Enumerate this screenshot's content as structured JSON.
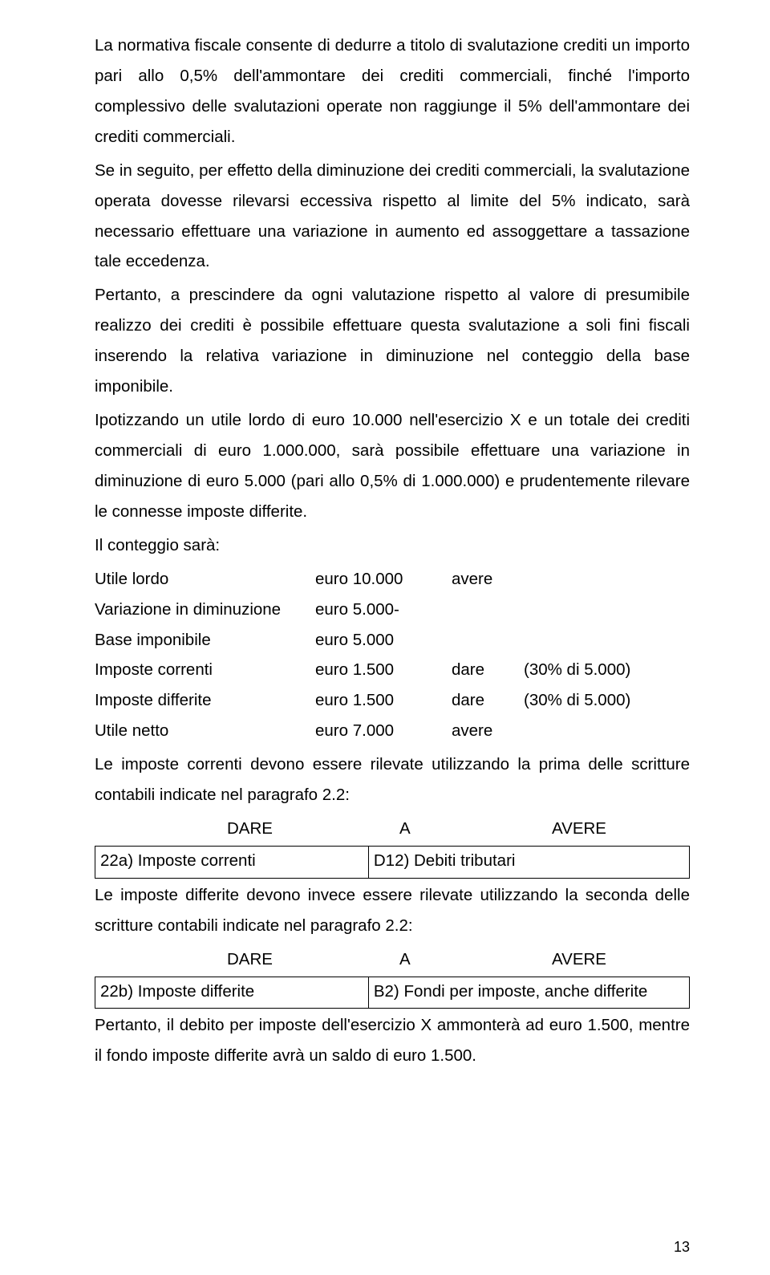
{
  "paragraphs": {
    "p1": "La normativa fiscale consente di dedurre a titolo di svalutazione crediti un importo pari allo 0,5% dell'ammontare dei crediti commerciali, finché l'importo complessivo delle svalutazioni operate non raggiunge il 5% dell'ammontare dei crediti commerciali.",
    "p2": "Se in seguito, per effetto della diminuzione dei crediti commerciali, la svalutazione operata dovesse rilevarsi eccessiva rispetto al limite del 5% indicato, sarà necessario effettuare una variazione in aumento ed assoggettare a tassazione tale eccedenza.",
    "p3": "Pertanto, a prescindere da ogni valutazione rispetto al valore di presumibile realizzo dei crediti è possibile effettuare questa svalutazione a soli fini fiscali inserendo la relativa variazione in diminuzione nel conteggio della base imponibile.",
    "p4": "Ipotizzando un utile lordo di euro 10.000 nell'esercizio X e un totale dei crediti commerciali di euro 1.000.000, sarà possibile effettuare una variazione in diminuzione di euro 5.000 (pari allo 0,5% di 1.000.000) e prudentemente rilevare le connesse imposte differite.",
    "p5": "Il conteggio sarà:",
    "p6": "Le imposte correnti devono essere rilevate utilizzando la prima delle scritture contabili indicate nel paragrafo 2.2:",
    "p7": "Le imposte differite devono invece essere rilevate utilizzando la seconda delle scritture contabili indicate nel paragrafo 2.2:",
    "p8": "Pertanto, il debito per imposte dell'esercizio X ammonterà ad euro 1.500, mentre il fondo imposte differite avrà un saldo di euro 1.500."
  },
  "calc": [
    {
      "label": "Utile lordo",
      "amount": "euro 10.000",
      "side": "avere",
      "note": ""
    },
    {
      "label": "Variazione in diminuzione",
      "amount": "euro 5.000-",
      "side": "",
      "note": ""
    },
    {
      "label": "Base imponibile",
      "amount": "euro 5.000",
      "side": "",
      "note": ""
    },
    {
      "label": "Imposte correnti",
      "amount": "euro 1.500",
      "side": "dare",
      "note": "(30% di 5.000)"
    },
    {
      "label": "Imposte differite",
      "amount": "euro 1.500",
      "side": "dare",
      "note": "(30% di 5.000)"
    },
    {
      "label": "Utile netto",
      "amount": "euro 7.000",
      "side": "avere",
      "note": ""
    }
  ],
  "dae": {
    "dare": "DARE",
    "a": "A",
    "avere": "AVERE"
  },
  "entry1": {
    "left": "22a) Imposte correnti",
    "right": "D12) Debiti tributari"
  },
  "entry2": {
    "left": "22b) Imposte differite",
    "right": "B2) Fondi per imposte, anche differite"
  },
  "page_number": "13"
}
